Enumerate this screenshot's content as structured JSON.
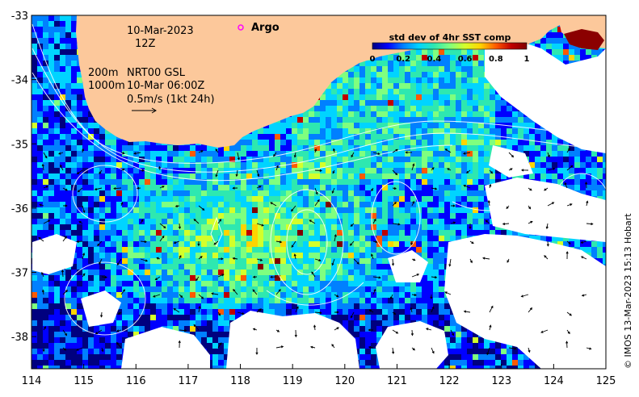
{
  "map": {
    "date": "10-Mar-2023",
    "time": "12Z",
    "depth_200": "200m",
    "depth_1000": "1000m",
    "product": "NRT00 GSL",
    "product_time": "10-Mar 06:00Z",
    "vector_scale": "0.5m/s (1kt 24h)",
    "argo_label": "Argo",
    "credit": "© IMOS 13-Mar-2023 15:13 Hobart",
    "colors": {
      "land": "#fcc89b",
      "argo_marker": "#ff00ff",
      "contours": "#ffffff"
    },
    "extent": {
      "lon": [
        114,
        125
      ],
      "lat": [
        -38.5,
        -33
      ]
    }
  },
  "axes": {
    "x_ticks": [
      "114",
      "115",
      "116",
      "117",
      "118",
      "119",
      "120",
      "121",
      "122",
      "123",
      "124",
      "125"
    ],
    "y_ticks": [
      "-33",
      "-34",
      "-35",
      "-36",
      "-37",
      "-38"
    ]
  },
  "colorbar": {
    "title": "std dev of 4hr SST comp",
    "ticks": [
      "0",
      "0.2",
      "0.4",
      "0.6",
      "0.8",
      "1"
    ],
    "range": [
      0,
      1
    ],
    "colors": [
      "#00007f",
      "#0000ff",
      "#0080ff",
      "#00d4ff",
      "#2ee8b0",
      "#7fff7f",
      "#d4ff2a",
      "#ffd400",
      "#ff5a00",
      "#c00000",
      "#7f0000"
    ]
  }
}
